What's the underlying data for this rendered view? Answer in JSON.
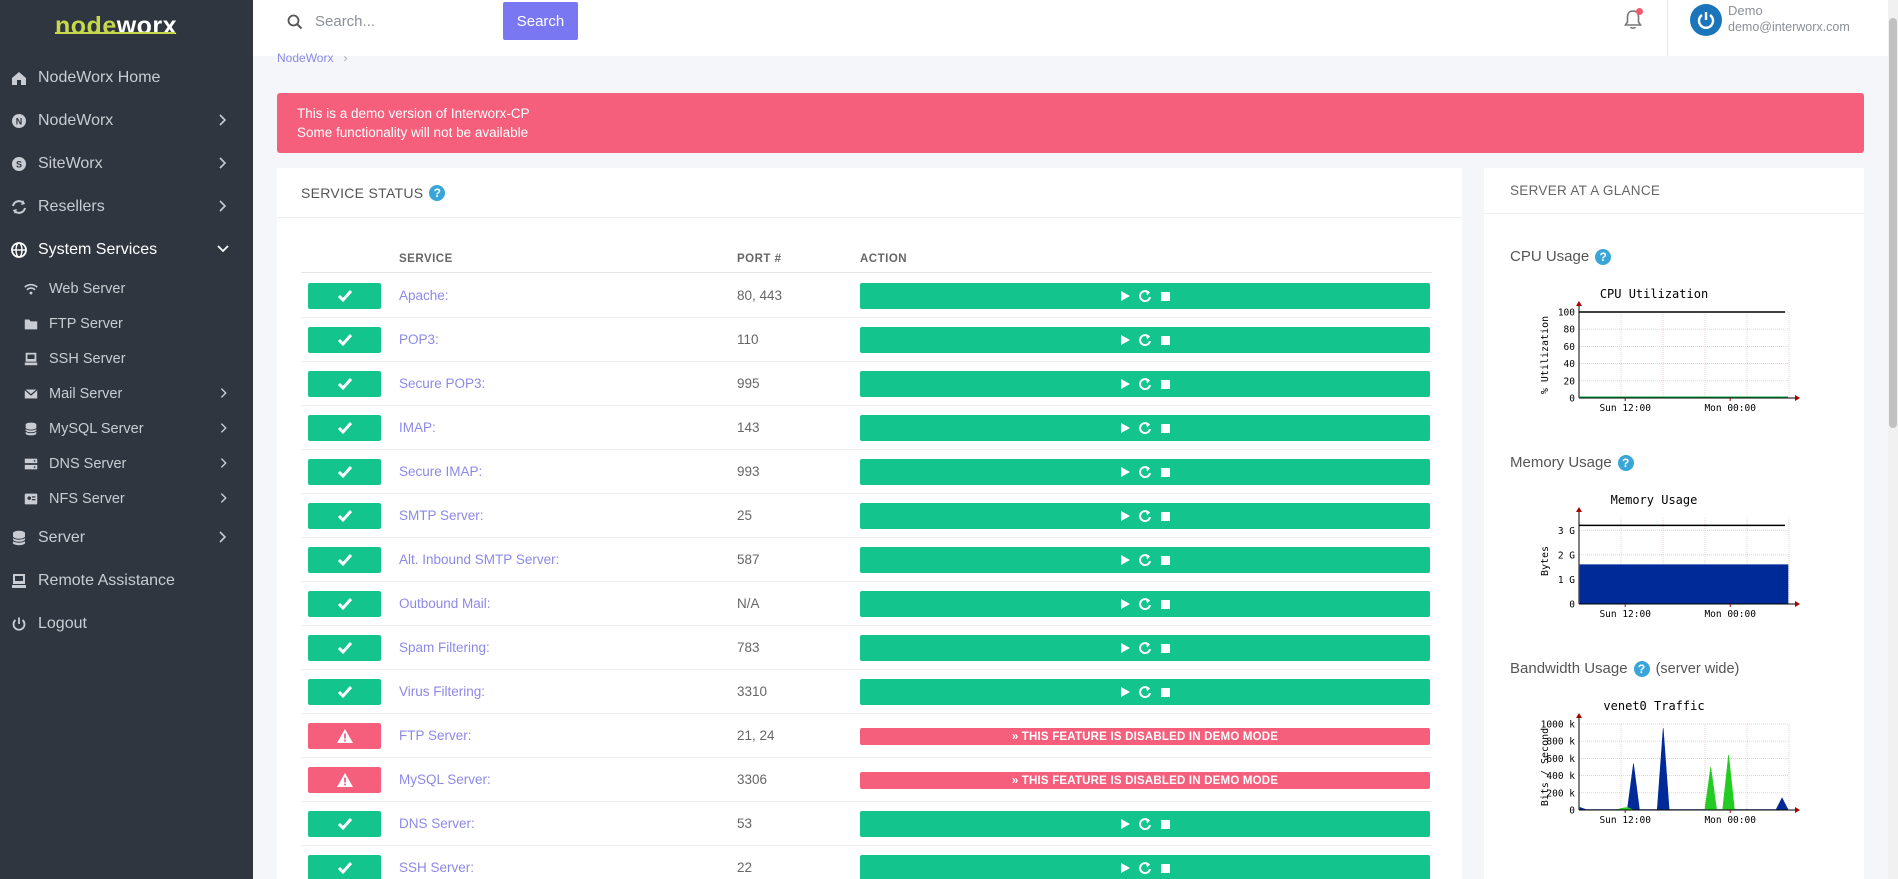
{
  "logo": {
    "part1": "node",
    "part2": "worx"
  },
  "sidebar": {
    "items": [
      {
        "label": "NodeWorx Home",
        "icon": "home-icon",
        "chevron": false
      },
      {
        "label": "NodeWorx",
        "icon": "nodeworx-icon",
        "chevron": true
      },
      {
        "label": "SiteWorx",
        "icon": "siteworx-icon",
        "chevron": true
      },
      {
        "label": "Resellers",
        "icon": "resellers-icon",
        "chevron": true
      },
      {
        "label": "System Services",
        "icon": "globe-icon",
        "chevron": true,
        "active": true
      }
    ],
    "sub_items": [
      {
        "label": "Web Server",
        "icon": "wifi-icon",
        "chevron": false
      },
      {
        "label": "FTP Server",
        "icon": "folder-icon",
        "chevron": false
      },
      {
        "label": "SSH Server",
        "icon": "terminal-icon",
        "chevron": false
      },
      {
        "label": "Mail Server",
        "icon": "mail-icon",
        "chevron": true
      },
      {
        "label": "MySQL Server",
        "icon": "database-icon",
        "chevron": true
      },
      {
        "label": "DNS Server",
        "icon": "server-icon",
        "chevron": true
      },
      {
        "label": "NFS Server",
        "icon": "nfs-icon",
        "chevron": true
      }
    ],
    "bottom_items": [
      {
        "label": "Server",
        "icon": "server-stack-icon",
        "chevron": true
      },
      {
        "label": "Remote Assistance",
        "icon": "assistance-icon",
        "chevron": false
      },
      {
        "label": "Logout",
        "icon": "power-icon",
        "chevron": false
      }
    ]
  },
  "topbar": {
    "search_placeholder": "Search...",
    "search_button": "Search",
    "user_name": "Demo",
    "user_email": "demo@interworx.com"
  },
  "breadcrumb": {
    "root": "NodeWorx",
    "separator": "›"
  },
  "alert": {
    "line1": "This is a demo version of Interworx-CP",
    "line2": "Some functionality will not be available"
  },
  "service_status": {
    "title": "SERVICE STATUS",
    "columns": {
      "service": "SERVICE",
      "port": "PORT #",
      "action": "ACTION"
    },
    "disabled_text": "» THIS FEATURE IS DISABLED IN DEMO MODE",
    "rows": [
      {
        "name": "Apache:",
        "port": "80, 443",
        "status": "ok"
      },
      {
        "name": "POP3:",
        "port": "110",
        "status": "ok"
      },
      {
        "name": "Secure POP3:",
        "port": "995",
        "status": "ok"
      },
      {
        "name": "IMAP:",
        "port": "143",
        "status": "ok"
      },
      {
        "name": "Secure IMAP:",
        "port": "993",
        "status": "ok"
      },
      {
        "name": "SMTP Server:",
        "port": "25",
        "status": "ok"
      },
      {
        "name": "Alt. Inbound SMTP Server:",
        "port": "587",
        "status": "ok"
      },
      {
        "name": "Outbound Mail:",
        "port": "N/A",
        "status": "ok"
      },
      {
        "name": "Spam Filtering:",
        "port": "783",
        "status": "ok"
      },
      {
        "name": "Virus Filtering:",
        "port": "3310",
        "status": "ok"
      },
      {
        "name": "FTP Server:",
        "port": "21, 24",
        "status": "disabled"
      },
      {
        "name": "MySQL Server:",
        "port": "3306",
        "status": "disabled"
      },
      {
        "name": "DNS Server:",
        "port": "53",
        "status": "ok"
      },
      {
        "name": "SSH Server:",
        "port": "22",
        "status": "ok"
      }
    ]
  },
  "glance": {
    "title": "SERVER AT A GLANCE",
    "cpu_title": "CPU Usage",
    "memory_title": "Memory Usage",
    "bandwidth_title": "Bandwidth Usage",
    "bandwidth_extra": "(server wide)"
  },
  "chart_data": [
    {
      "type": "line",
      "title": "CPU Utilization",
      "ylabel": "% Utilization",
      "xlabel": "",
      "x_ticks": [
        "Sun 12:00",
        "Mon 00:00"
      ],
      "y_ticks": [
        "0",
        "20",
        "40",
        "60",
        "80",
        "100"
      ],
      "ylim": [
        0,
        100
      ],
      "series": [
        {
          "values": [
            1,
            1,
            1,
            1,
            1,
            1,
            1,
            1,
            1,
            1,
            1,
            1,
            1,
            1,
            1,
            1,
            1,
            1,
            1,
            1
          ]
        }
      ],
      "max_line": 100,
      "color": "#00aa44"
    },
    {
      "type": "area",
      "title": "Memory Usage",
      "ylabel": "Bytes",
      "xlabel": "",
      "x_ticks": [
        "Sun 12:00",
        "Mon 00:00"
      ],
      "y_ticks": [
        "0",
        "1 G",
        "2 G",
        "3 G"
      ],
      "ylim": [
        0,
        3.5
      ],
      "series": [
        {
          "values": [
            1.6,
            1.6,
            1.6,
            1.6,
            1.6,
            1.6,
            1.6,
            1.6,
            1.6,
            1.6
          ]
        }
      ],
      "max_line": 3.2,
      "color": "#002a97"
    },
    {
      "type": "area",
      "title": "venet0 Traffic",
      "ylabel": "Bits / Second",
      "xlabel": "",
      "x_ticks": [
        "Sun 12:00",
        "Mon 00:00"
      ],
      "y_ticks": [
        "0",
        "200 k",
        "400 k",
        "600 k",
        "800 k",
        "1000 k"
      ],
      "ylim": [
        0,
        1000
      ],
      "series": [
        {
          "values": [
            30,
            5,
            5,
            5,
            5,
            5,
            5,
            10,
            20,
            540,
            5,
            5,
            5,
            5,
            950,
            5,
            5,
            5,
            5,
            5,
            5,
            5,
            5,
            5,
            5,
            5,
            5,
            5,
            5,
            5,
            5,
            5,
            5,
            5,
            140,
            5
          ],
          "color": "#002a97"
        },
        {
          "values": [
            0,
            0,
            0,
            0,
            0,
            0,
            0,
            20,
            30,
            0,
            0,
            0,
            0,
            0,
            0,
            0,
            0,
            0,
            0,
            0,
            0,
            0,
            500,
            0,
            0,
            640,
            0,
            0,
            0,
            0,
            0,
            0,
            0,
            0,
            0,
            0
          ],
          "color": "#22cc22"
        }
      ]
    }
  ]
}
